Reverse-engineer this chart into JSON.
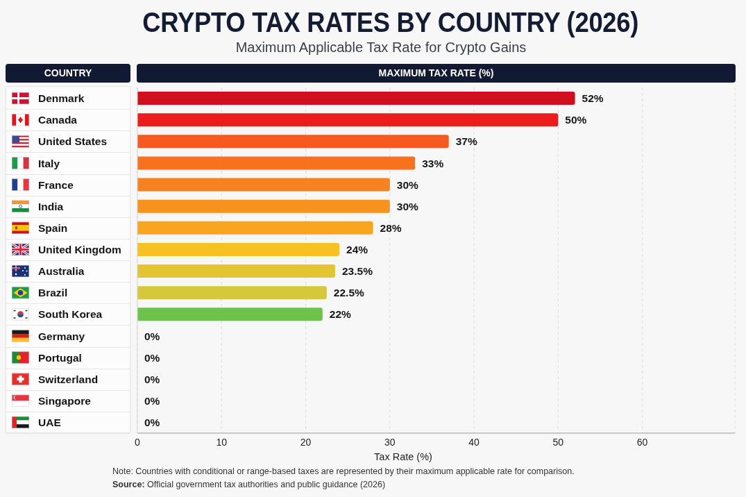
{
  "chart_data": {
    "type": "bar",
    "orientation": "horizontal",
    "title": "CRYPTO TAX RATES BY COUNTRY (2026)",
    "subtitle": "Maximum Applicable Tax Rate for Crypto Gains",
    "ylabel": "COUNTRY",
    "x2label": "MAXIMUM TAX RATE (%)",
    "xlabel": "Tax Rate (%)",
    "categories": [
      "Denmark",
      "Canada",
      "United States",
      "Italy",
      "France",
      "India",
      "Spain",
      "United Kingdom",
      "Australia",
      "Brazil",
      "South Korea",
      "Germany",
      "Portugal",
      "Switzerland",
      "Singapore",
      "UAE"
    ],
    "values": [
      52,
      50,
      37,
      33,
      30,
      30,
      28,
      24,
      23.5,
      22.5,
      22,
      0,
      0,
      0,
      0,
      0
    ],
    "colors": [
      "#d00f1d",
      "#ee1b1d",
      "#f65a20",
      "#f7711f",
      "#f8821f",
      "#f8921e",
      "#f9a51f",
      "#f8c123",
      "#e3c532",
      "#d5c93b",
      "#6dc24b",
      null,
      null,
      null,
      null,
      null
    ],
    "value_labels": [
      "52%",
      "50%",
      "37%",
      "33%",
      "30%",
      "30%",
      "28%",
      "24%",
      "23.5%",
      "22.5%",
      "22%",
      "0%",
      "0%",
      "0%",
      "0%",
      "0%"
    ],
    "xlim": [
      0,
      71
    ],
    "xticks": [
      0,
      10,
      20,
      30,
      40,
      50,
      60
    ],
    "grid": "x",
    "annotations": [
      "Note: Countries with conditional or range-based taxes are represented by their maximum applicable rate for comparison.",
      "Source: Official government tax authorities and public guidance (2026)"
    ]
  }
}
